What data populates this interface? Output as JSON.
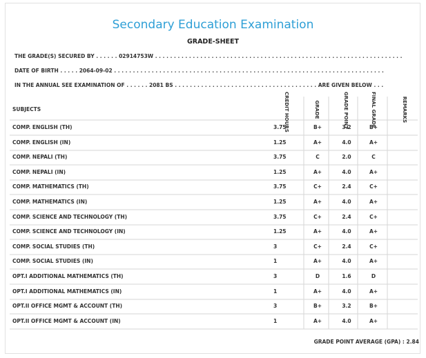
{
  "title": "Secondary Education Examination",
  "subtitle": "GRADE-SHEET",
  "secured_by": {
    "label": "THE GRADE(S) SECURED BY",
    "value": "02914753W"
  },
  "dob": {
    "label": "DATE OF BIRTH",
    "value": "2064-09-02"
  },
  "exam": {
    "label": "IN THE ANNUAL SEE EXAMINATION OF",
    "value": "2081 BS",
    "suffix": "ARE GIVEN BELOW"
  },
  "headers": {
    "subjects": "SUBJECTS",
    "credit_hours": "CREDIT HOURS",
    "grade": "GRADE",
    "grade_point": "GRADE POINT",
    "final_grade": "FINAL GRADE",
    "remarks": "REMARKS"
  },
  "rows": [
    {
      "subject": "COMP. ENGLISH (TH)",
      "credit": "3.75",
      "grade": "B+",
      "point": "3.2",
      "final": "B+"
    },
    {
      "subject": "COMP. ENGLISH (IN)",
      "credit": "1.25",
      "grade": "A+",
      "point": "4.0",
      "final": "A+"
    },
    {
      "subject": "COMP. NEPALI (TH)",
      "credit": "3.75",
      "grade": "C",
      "point": "2.0",
      "final": "C"
    },
    {
      "subject": "COMP. NEPALI (IN)",
      "credit": "1.25",
      "grade": "A+",
      "point": "4.0",
      "final": "A+"
    },
    {
      "subject": "COMP. MATHEMATICS (TH)",
      "credit": "3.75",
      "grade": "C+",
      "point": "2.4",
      "final": "C+"
    },
    {
      "subject": "COMP. MATHEMATICS (IN)",
      "credit": "1.25",
      "grade": "A+",
      "point": "4.0",
      "final": "A+"
    },
    {
      "subject": "COMP. SCIENCE AND TECHNOLOGY (TH)",
      "credit": "3.75",
      "grade": "C+",
      "point": "2.4",
      "final": "C+"
    },
    {
      "subject": "COMP. SCIENCE AND TECHNOLOGY (IN)",
      "credit": "1.25",
      "grade": "A+",
      "point": "4.0",
      "final": "A+"
    },
    {
      "subject": "COMP. SOCIAL STUDIES (TH)",
      "credit": "3",
      "grade": "C+",
      "point": "2.4",
      "final": "C+"
    },
    {
      "subject": "COMP. SOCIAL STUDIES (IN)",
      "credit": "1",
      "grade": "A+",
      "point": "4.0",
      "final": "A+"
    },
    {
      "subject": "OPT.I ADDITIONAL MATHEMATICS (TH)",
      "credit": "3",
      "grade": "D",
      "point": "1.6",
      "final": "D"
    },
    {
      "subject": "OPT.I ADDITIONAL MATHEMATICS (IN)",
      "credit": "1",
      "grade": "A+",
      "point": "4.0",
      "final": "A+"
    },
    {
      "subject": "OPT.II OFFICE MGMT & ACCOUNT (TH)",
      "credit": "3",
      "grade": "B+",
      "point": "3.2",
      "final": "B+"
    },
    {
      "subject": "OPT.II OFFICE MGMT & ACCOUNT (IN)",
      "credit": "1",
      "grade": "A+",
      "point": "4.0",
      "final": "A+"
    }
  ],
  "gpa": {
    "label": "GRADE POINT AVERAGE (GPA) :",
    "value": "2.84"
  }
}
